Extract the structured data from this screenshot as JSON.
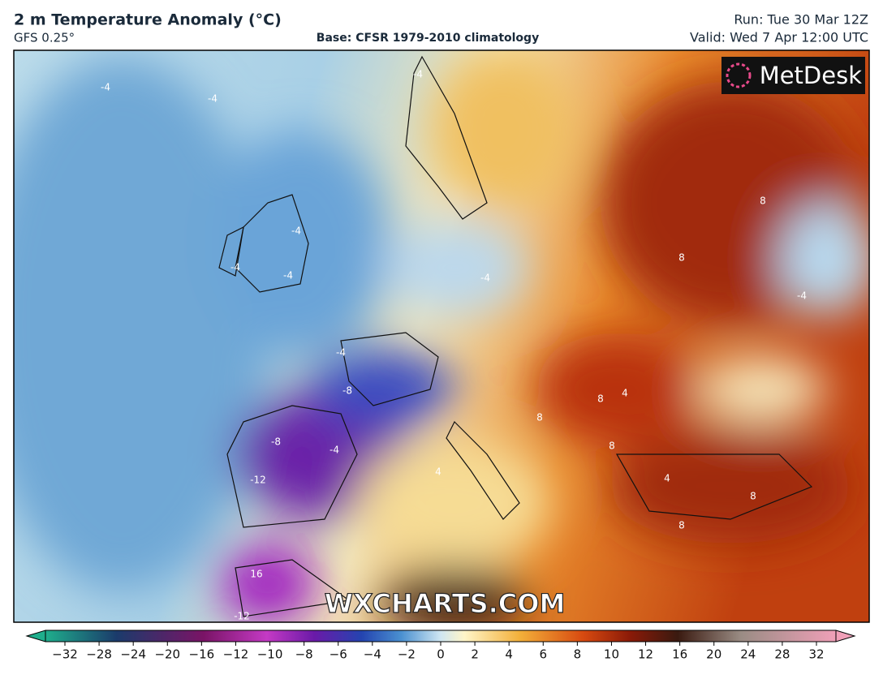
{
  "header": {
    "title": "2 m Temperature Anomaly (°C)",
    "model": "GFS 0.25°",
    "base": "Base: CFSR 1979-2010 climatology",
    "run": "Run: Tue 30 Mar 12Z",
    "valid": "Valid: Wed 7 Apr 12:00 UTC"
  },
  "map": {
    "logo": "MetDesk",
    "watermark": "WXCHARTS.COM",
    "contour_labels": [
      "-4",
      "-4",
      "-4",
      "-4",
      "-4",
      "-4",
      "-4",
      "-8",
      "-8",
      "-12",
      "-12",
      "16",
      "-4",
      "8",
      "8",
      "8",
      "8",
      "8",
      "4",
      "4",
      "-4",
      "-4",
      "8",
      "8",
      "4"
    ]
  },
  "colorbar": {
    "labels": [
      "−32",
      "−28",
      "−24",
      "−20",
      "−16",
      "−12",
      "−10",
      "−8",
      "−6",
      "−4",
      "−2",
      "0",
      "2",
      "4",
      "6",
      "8",
      "10",
      "12",
      "16",
      "20",
      "24",
      "28",
      "32"
    ]
  }
}
